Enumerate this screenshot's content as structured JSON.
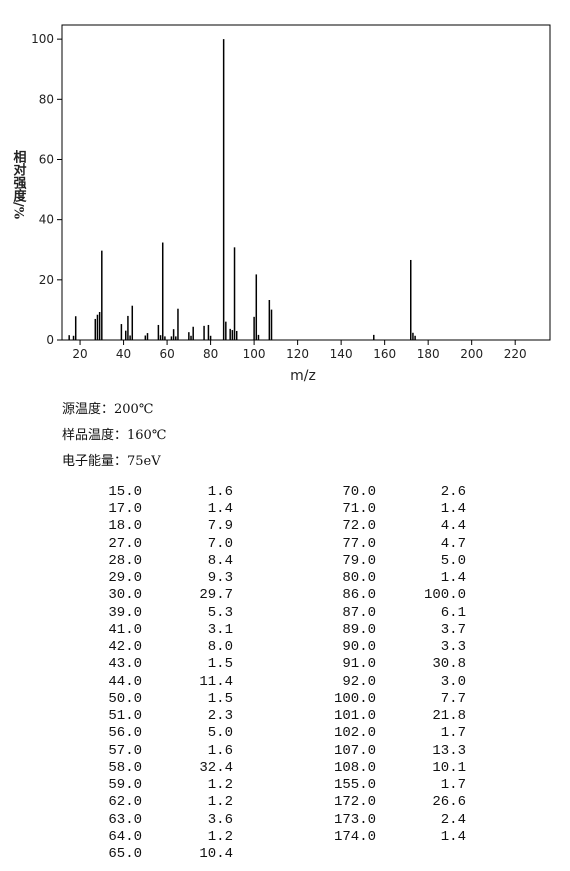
{
  "chart_data": {
    "type": "bar",
    "xlabel": "m/z",
    "ylabel": "相对强度/%",
    "color": "#000000",
    "x": [
      15,
      17,
      18,
      27,
      28,
      29,
      30,
      39,
      41,
      42,
      43,
      44,
      50,
      51,
      56,
      57,
      58,
      59,
      62,
      63,
      64,
      65,
      70,
      71,
      72,
      77,
      79,
      80,
      86,
      87,
      89,
      90,
      91,
      92,
      100,
      101,
      102,
      107,
      108,
      155,
      172,
      173,
      174
    ],
    "values": [
      1.6,
      1.4,
      7.9,
      7.0,
      8.4,
      9.3,
      29.7,
      5.3,
      3.1,
      8.0,
      1.5,
      11.4,
      1.5,
      2.3,
      5.0,
      1.6,
      32.4,
      1.2,
      1.2,
      3.6,
      1.2,
      10.4,
      2.6,
      1.4,
      4.4,
      4.7,
      5.0,
      1.4,
      100.0,
      6.1,
      3.7,
      3.3,
      30.8,
      3.0,
      7.7,
      21.8,
      1.7,
      13.3,
      10.1,
      1.7,
      26.6,
      2.4,
      1.4
    ],
    "xlim": [
      11.7,
      236
    ],
    "ylim": [
      0,
      104.7
    ],
    "xticks": [
      20,
      40,
      60,
      80,
      100,
      120,
      140,
      160,
      180,
      200,
      220
    ],
    "yticks": [
      0,
      20,
      40,
      60,
      80,
      100
    ]
  },
  "conditions": [
    "源温度：200℃",
    "样品温度：160℃",
    "电子能量：75eV"
  ],
  "table": {
    "left": [
      [
        "15.0",
        "1.6"
      ],
      [
        "17.0",
        "1.4"
      ],
      [
        "18.0",
        "7.9"
      ],
      [
        "27.0",
        "7.0"
      ],
      [
        "28.0",
        "8.4"
      ],
      [
        "29.0",
        "9.3"
      ],
      [
        "30.0",
        "29.7"
      ],
      [
        "39.0",
        "5.3"
      ],
      [
        "41.0",
        "3.1"
      ],
      [
        "42.0",
        "8.0"
      ],
      [
        "43.0",
        "1.5"
      ],
      [
        "44.0",
        "11.4"
      ],
      [
        "50.0",
        "1.5"
      ],
      [
        "51.0",
        "2.3"
      ],
      [
        "56.0",
        "5.0"
      ],
      [
        "57.0",
        "1.6"
      ],
      [
        "58.0",
        "32.4"
      ],
      [
        "59.0",
        "1.2"
      ],
      [
        "62.0",
        "1.2"
      ],
      [
        "63.0",
        "3.6"
      ],
      [
        "64.0",
        "1.2"
      ],
      [
        "65.0",
        "10.4"
      ]
    ],
    "right": [
      [
        "70.0",
        "2.6"
      ],
      [
        "71.0",
        "1.4"
      ],
      [
        "72.0",
        "4.4"
      ],
      [
        "77.0",
        "4.7"
      ],
      [
        "79.0",
        "5.0"
      ],
      [
        "80.0",
        "1.4"
      ],
      [
        "86.0",
        "100.0"
      ],
      [
        "87.0",
        "6.1"
      ],
      [
        "89.0",
        "3.7"
      ],
      [
        "90.0",
        "3.3"
      ],
      [
        "91.0",
        "30.8"
      ],
      [
        "92.0",
        "3.0"
      ],
      [
        "100.0",
        "7.7"
      ],
      [
        "101.0",
        "21.8"
      ],
      [
        "102.0",
        "1.7"
      ],
      [
        "107.0",
        "13.3"
      ],
      [
        "108.0",
        "10.1"
      ],
      [
        "155.0",
        "1.7"
      ],
      [
        "172.0",
        "26.6"
      ],
      [
        "173.0",
        "2.4"
      ],
      [
        "174.0",
        "1.4"
      ]
    ]
  }
}
